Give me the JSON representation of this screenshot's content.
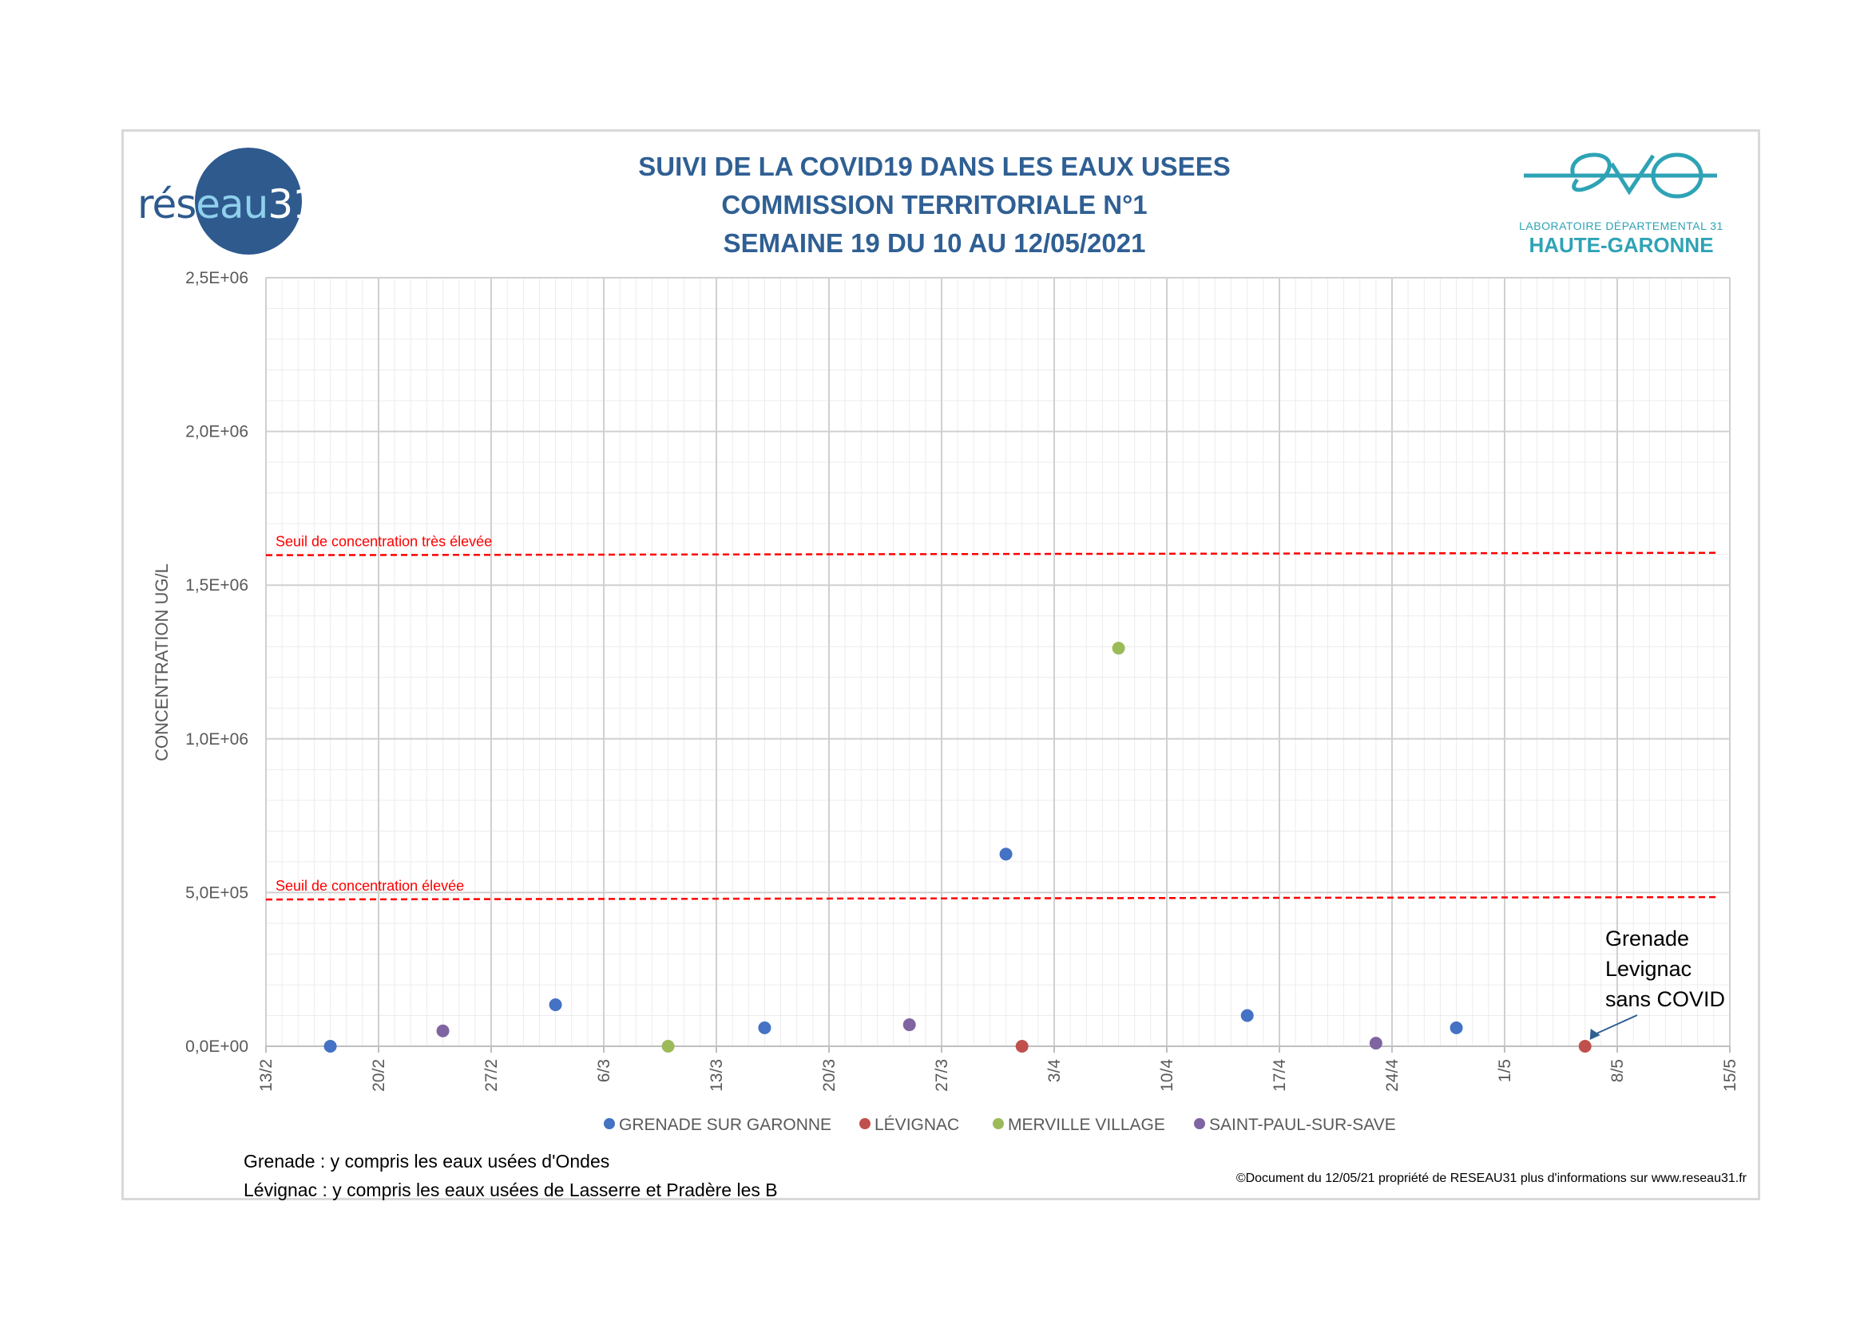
{
  "header": {
    "title_lines": [
      "SUIVI DE LA COVID19 DANS LES EAUX USEES",
      "COMMISSION TERRITORIALE N°1",
      "SEMAINE 19 DU 10 AU 12/05/2021"
    ],
    "logo_left": {
      "part1": "rés",
      "part2": "eau",
      "part3": "31"
    },
    "logo_right": {
      "line1": "LABORATOIRE DÉPARTEMENTAL 31",
      "line2": "HAUTE-GARONNE"
    }
  },
  "notes": {
    "grenade": "Grenade : y compris les eaux usées d'Ondes",
    "levignac": "Lévignac : y compris les eaux usées de Lasserre et Pradère les B"
  },
  "copyright": "©Document du 12/05/21 propriété de RESEAU31 plus d'informations sur www.reseau31.fr",
  "chart_data": {
    "type": "scatter",
    "title": "SUIVI DE LA COVID19 DANS LES EAUX USEES",
    "xlabel": "",
    "ylabel": "CONCENTRATION UG/L",
    "x_ticks": [
      "13/2",
      "20/2",
      "27/2",
      "6/3",
      "13/3",
      "20/3",
      "27/3",
      "3/4",
      "10/4",
      "17/4",
      "24/4",
      "1/5",
      "8/5",
      "15/5"
    ],
    "xlim": [
      "2021-02-13",
      "2021-05-15"
    ],
    "ylim": [
      0,
      2500000
    ],
    "y_ticks": [
      {
        "value": 0,
        "label": "0,0E+00"
      },
      {
        "value": 500000,
        "label": "5,0E+05"
      },
      {
        "value": 1000000,
        "label": "1,0E+06"
      },
      {
        "value": 1500000,
        "label": "1,5E+06"
      },
      {
        "value": 2000000,
        "label": "2,0E+06"
      },
      {
        "value": 2500000,
        "label": "2,5E+06"
      }
    ],
    "grid": true,
    "legend_position": "bottom",
    "series": [
      {
        "name": "GRENADE SUR GARONNE",
        "color": "#4472c4",
        "points": [
          [
            "2021-02-17",
            0
          ],
          [
            "2021-03-03",
            135000
          ],
          [
            "2021-03-16",
            60000
          ],
          [
            "2021-03-31",
            625000
          ],
          [
            "2021-04-15",
            100000
          ],
          [
            "2021-04-28",
            60000
          ]
        ]
      },
      {
        "name": "LÉVIGNAC",
        "color": "#c0504d",
        "points": [
          [
            "2021-04-01",
            0
          ],
          [
            "2021-05-06",
            0
          ]
        ]
      },
      {
        "name": "MERVILLE VILLAGE",
        "color": "#9bbb59",
        "points": [
          [
            "2021-03-10",
            0
          ],
          [
            "2021-04-07",
            1295000
          ]
        ]
      },
      {
        "name": "SAINT-PAUL-SUR-SAVE",
        "color": "#8064a2",
        "points": [
          [
            "2021-02-24",
            50000
          ],
          [
            "2021-03-25",
            70000
          ],
          [
            "2021-04-23",
            10000
          ]
        ]
      }
    ],
    "threshold_lines": [
      {
        "label": "Seuil de concentration très élevée",
        "value": 1600000,
        "color": "#ff0000"
      },
      {
        "label": "Seuil de concentration élevée",
        "value": 480000,
        "color": "#ff0000"
      }
    ],
    "annotation": {
      "lines": [
        "Grenade",
        "Levignac",
        "sans COVID"
      ],
      "target": [
        "2021-05-06",
        0
      ]
    }
  }
}
